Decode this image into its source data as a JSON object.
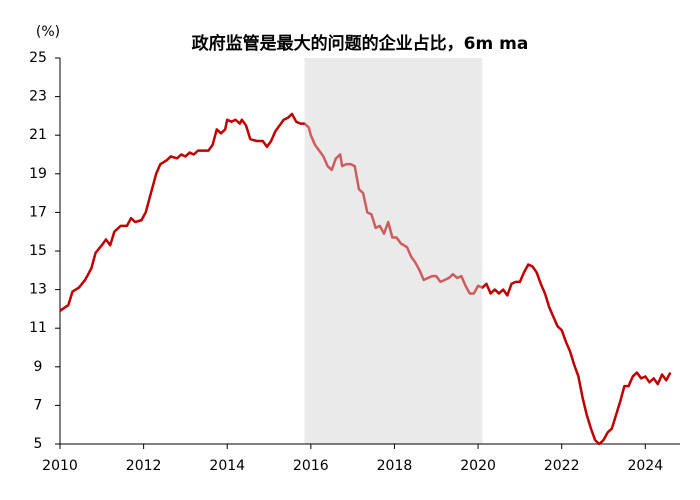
{
  "chart_data": {
    "type": "line",
    "title": "政府监管是最大的问题的企业占比，6m ma",
    "y_unit_label": "(%)",
    "color": "#c00000",
    "shaded_span": [
      2015.85,
      2020.1
    ],
    "shade_color": "#e6e6e6",
    "x": [
      2010.0,
      2010.2,
      2010.3,
      2010.45,
      2010.6,
      2010.75,
      2010.85,
      2011.0,
      2011.1,
      2011.2,
      2011.3,
      2011.45,
      2011.6,
      2011.7,
      2011.8,
      2011.95,
      2012.05,
      2012.15,
      2012.3,
      2012.4,
      2012.55,
      2012.65,
      2012.8,
      2012.9,
      2013.0,
      2013.1,
      2013.2,
      2013.3,
      2013.45,
      2013.55,
      2013.65,
      2013.75,
      2013.85,
      2013.95,
      2014.0,
      2014.1,
      2014.2,
      2014.3,
      2014.35,
      2014.45,
      2014.55,
      2014.7,
      2014.85,
      2014.95,
      2015.05,
      2015.15,
      2015.25,
      2015.35,
      2015.45,
      2015.55,
      2015.65,
      2015.75,
      2015.85,
      2015.95,
      2016.0,
      2016.1,
      2016.2,
      2016.3,
      2016.4,
      2016.5,
      2016.6,
      2016.7,
      2016.75,
      2016.85,
      2016.95,
      2017.05,
      2017.15,
      2017.25,
      2017.35,
      2017.45,
      2017.55,
      2017.65,
      2017.75,
      2017.85,
      2017.95,
      2018.05,
      2018.15,
      2018.3,
      2018.4,
      2018.5,
      2018.6,
      2018.7,
      2018.8,
      2018.9,
      2019.0,
      2019.1,
      2019.2,
      2019.3,
      2019.4,
      2019.5,
      2019.6,
      2019.7,
      2019.8,
      2019.9,
      2020.0,
      2020.1,
      2020.2,
      2020.3,
      2020.4,
      2020.5,
      2020.6,
      2020.7,
      2020.8,
      2020.9,
      2021.0,
      2021.1,
      2021.2,
      2021.3,
      2021.4,
      2021.5,
      2021.6,
      2021.7,
      2021.8,
      2021.9,
      2022.0,
      2022.1,
      2022.2,
      2022.3,
      2022.4,
      2022.5,
      2022.6,
      2022.7,
      2022.8,
      2022.9,
      2023.0,
      2023.1,
      2023.2,
      2023.3,
      2023.4,
      2023.5,
      2023.6,
      2023.7,
      2023.8,
      2023.9,
      2024.0,
      2024.1,
      2024.2,
      2024.3,
      2024.4,
      2024.5,
      2024.6
    ],
    "values": [
      11.9,
      12.2,
      12.9,
      13.1,
      13.5,
      14.1,
      14.9,
      15.3,
      15.6,
      15.3,
      16.0,
      16.3,
      16.3,
      16.7,
      16.5,
      16.6,
      17.0,
      17.8,
      19.0,
      19.5,
      19.7,
      19.9,
      19.8,
      20.0,
      19.9,
      20.1,
      20.0,
      20.2,
      20.2,
      20.2,
      20.5,
      21.3,
      21.1,
      21.3,
      21.8,
      21.7,
      21.8,
      21.6,
      21.8,
      21.5,
      20.8,
      20.7,
      20.7,
      20.4,
      20.7,
      21.2,
      21.5,
      21.8,
      21.9,
      22.1,
      21.7,
      21.6,
      21.6,
      21.4,
      21.0,
      20.5,
      20.2,
      19.9,
      19.4,
      19.2,
      19.8,
      20.0,
      19.4,
      19.5,
      19.5,
      19.4,
      18.2,
      18.0,
      17.0,
      16.9,
      16.2,
      16.3,
      15.9,
      16.5,
      15.7,
      15.7,
      15.4,
      15.2,
      14.7,
      14.4,
      14.0,
      13.5,
      13.6,
      13.7,
      13.7,
      13.4,
      13.5,
      13.6,
      13.8,
      13.6,
      13.7,
      13.2,
      12.8,
      12.8,
      13.2,
      13.1,
      13.3,
      12.8,
      13.0,
      12.8,
      13.0,
      12.7,
      13.3,
      13.4,
      13.4,
      13.9,
      14.3,
      14.2,
      13.9,
      13.3,
      12.8,
      12.1,
      11.6,
      11.1,
      10.9,
      10.3,
      9.8,
      9.1,
      8.5,
      7.4,
      6.5,
      5.8,
      5.2,
      5.0,
      5.2,
      5.6,
      5.8,
      6.5,
      7.2,
      8.0,
      8.0,
      8.5,
      8.7,
      8.4,
      8.5,
      8.2,
      8.4,
      8.1,
      8.6,
      8.3,
      8.7
    ],
    "xlim": [
      2010,
      2024.83
    ],
    "xticks": [
      2010,
      2012,
      2014,
      2016,
      2018,
      2020,
      2022,
      2024
    ],
    "ylim": [
      5,
      25
    ],
    "yticks": [
      5,
      7,
      9,
      11,
      13,
      15,
      17,
      19,
      21,
      23,
      25
    ]
  }
}
